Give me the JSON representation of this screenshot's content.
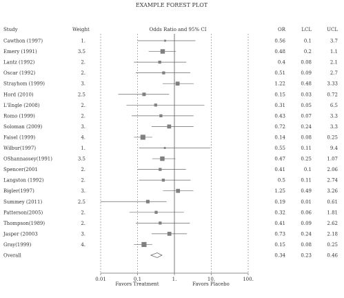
{
  "chart_data": {
    "type": "forest",
    "title": "EXAMPLE FOREST PLOT",
    "column_headers": {
      "study": "Study",
      "weight": "Weight",
      "plot": "Odds Ratio and 95% CI",
      "or": "OR",
      "lcl": "LCL",
      "ucl": "UCL"
    },
    "x_scale": "log",
    "x_ticks": [
      "0.01",
      "0.1",
      "1.",
      "10.",
      "100."
    ],
    "x_tick_values": [
      0.01,
      0.1,
      1,
      10,
      100
    ],
    "xlim": [
      0.01,
      100
    ],
    "reference_line": 1,
    "favors_left": "Favors Treatment",
    "favors_right": "Favors Placebo",
    "studies": [
      {
        "study": "Cawthon (1997)",
        "weight": "1.",
        "or": "0.56",
        "lcl": "0.1",
        "ucl": "3.7"
      },
      {
        "study": "Emery (1991)",
        "weight": "3.5",
        "or": "0.48",
        "lcl": "0.2",
        "ucl": "1.1"
      },
      {
        "study": "Lantz (1992)",
        "weight": "2.",
        "or": "0.4",
        "lcl": "0.08",
        "ucl": "2.1"
      },
      {
        "study": "Oscar (1992)",
        "weight": "2.",
        "or": "0.51",
        "lcl": "0.09",
        "ucl": "2.7"
      },
      {
        "study": "Strayhom (1999)",
        "weight": "3.",
        "or": "1.22",
        "lcl": "0.48",
        "ucl": "3.33"
      },
      {
        "study": "Hord (2010)",
        "weight": "2.5",
        "or": "0.15",
        "lcl": "0.03",
        "ucl": "0.72"
      },
      {
        "study": "L'Engle (2008)",
        "weight": "2.",
        "or": "0.31",
        "lcl": "0.05",
        "ucl": "6.5"
      },
      {
        "study": "Romo (1999)",
        "weight": "2.",
        "or": "0.43",
        "lcl": "0.07",
        "ucl": "3.3"
      },
      {
        "study": "Soloman (2009)",
        "weight": "3.",
        "or": "0.72",
        "lcl": "0.24",
        "ucl": "3.3"
      },
      {
        "study": "Faisel (1999)",
        "weight": "4.",
        "or": "0.14",
        "lcl": "0.08",
        "ucl": "0.25"
      },
      {
        "study": "Wilbur(1997)",
        "weight": "1.",
        "or": "0.55",
        "lcl": "0.11",
        "ucl": "9.4"
      },
      {
        "study": "OShannassey(1991)",
        "weight": "3.5",
        "or": "0.47",
        "lcl": "0.25",
        "ucl": "1.07"
      },
      {
        "study": "Spencer(2001",
        "weight": "2.",
        "or": "0.41",
        "lcl": "0.1",
        "ucl": "2.06"
      },
      {
        "study": "Langston (1992)",
        "weight": "2.",
        "or": "0.5",
        "lcl": "0.11",
        "ucl": "2.74"
      },
      {
        "study": "Bigler(1997)",
        "weight": "3.",
        "or": "1.25",
        "lcl": "0.49",
        "ucl": "3.26"
      },
      {
        "study": "Summey (2011)",
        "weight": "2.5",
        "or": "0.19",
        "lcl": "0.01",
        "ucl": "0.61"
      },
      {
        "study": "Patterson(2005)",
        "weight": "2.",
        "or": "0.32",
        "lcl": "0.06",
        "ucl": "1.81"
      },
      {
        "study": "Thompson(1989)",
        "weight": "2.",
        "or": "0.41",
        "lcl": "0.09",
        "ucl": "2.62"
      },
      {
        "study": "Jasper (20003",
        "weight": "3.",
        "or": "0.73",
        "lcl": "0.24",
        "ucl": "2.18"
      },
      {
        "study": "Gray(1999)",
        "weight": "4.",
        "or": "0.15",
        "lcl": "0.08",
        "ucl": "0.25"
      }
    ],
    "overall": {
      "study": "Overall",
      "or": "0.34",
      "lcl": "0.23",
      "ucl": "0.46"
    },
    "colors": {
      "box": "#808080",
      "ci_line": "#666666",
      "reference": "#555555",
      "grid": "#777777",
      "text": "#333333",
      "diamond_fill": "#ffffff"
    }
  }
}
